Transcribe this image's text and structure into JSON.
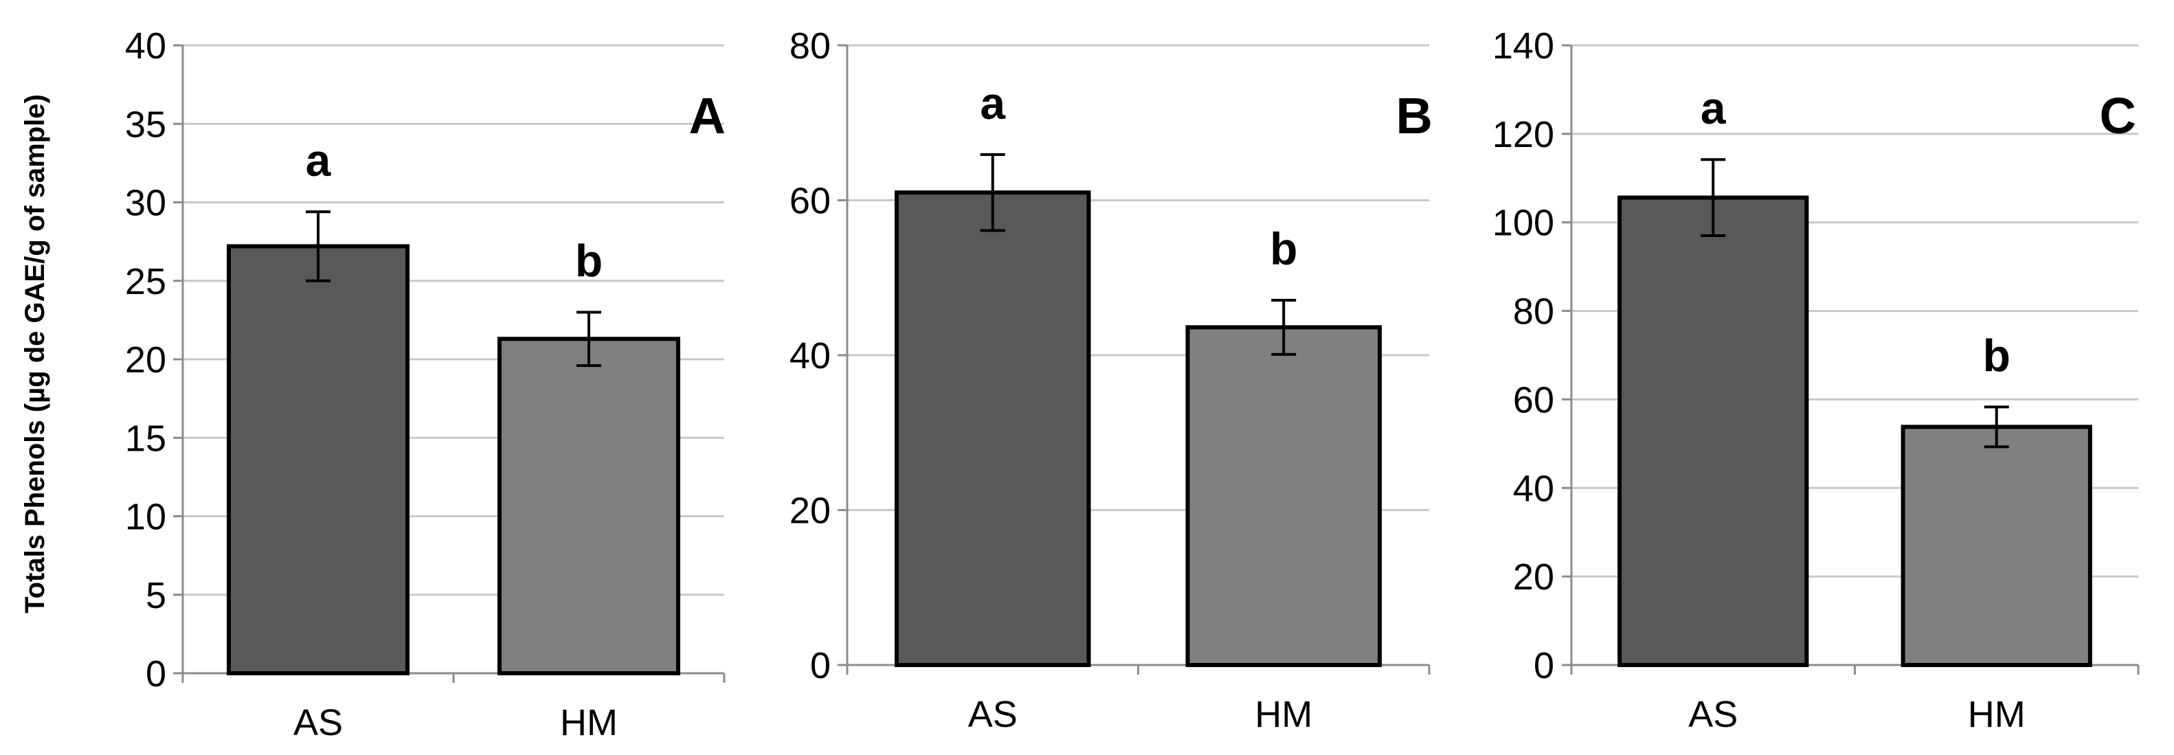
{
  "chart_data": [
    {
      "type": "bar",
      "panel_label": "A",
      "categories": [
        "AS",
        "HM"
      ],
      "values": [
        27.2,
        21.3
      ],
      "errors": [
        2.2,
        1.7
      ],
      "significance": [
        "a",
        "b"
      ],
      "ylabel": "Totals Phenols (µg de GAE/g of sample)",
      "ylim": [
        0,
        40
      ],
      "yticks": [
        0,
        5,
        10,
        15,
        20,
        25,
        30,
        35,
        40
      ],
      "bar_colors": [
        "#595959",
        "#808080"
      ],
      "grid": true
    },
    {
      "type": "bar",
      "panel_label": "B",
      "categories": [
        "AS",
        "HM"
      ],
      "values": [
        61,
        43.6
      ],
      "errors": [
        4.9,
        3.5
      ],
      "significance": [
        "a",
        "b"
      ],
      "ylabel": "",
      "ylim": [
        0,
        80
      ],
      "yticks": [
        0,
        20,
        40,
        60,
        80
      ],
      "bar_colors": [
        "#595959",
        "#808080"
      ],
      "grid": true
    },
    {
      "type": "bar",
      "panel_label": "C",
      "categories": [
        "AS",
        "HM"
      ],
      "values": [
        105.6,
        53.8
      ],
      "errors": [
        8.6,
        4.5
      ],
      "significance": [
        "a",
        "b"
      ],
      "ylabel": "",
      "ylim": [
        0,
        140
      ],
      "yticks": [
        0,
        20,
        40,
        60,
        80,
        100,
        120,
        140
      ],
      "bar_colors": [
        "#595959",
        "#808080"
      ],
      "grid": true
    }
  ]
}
